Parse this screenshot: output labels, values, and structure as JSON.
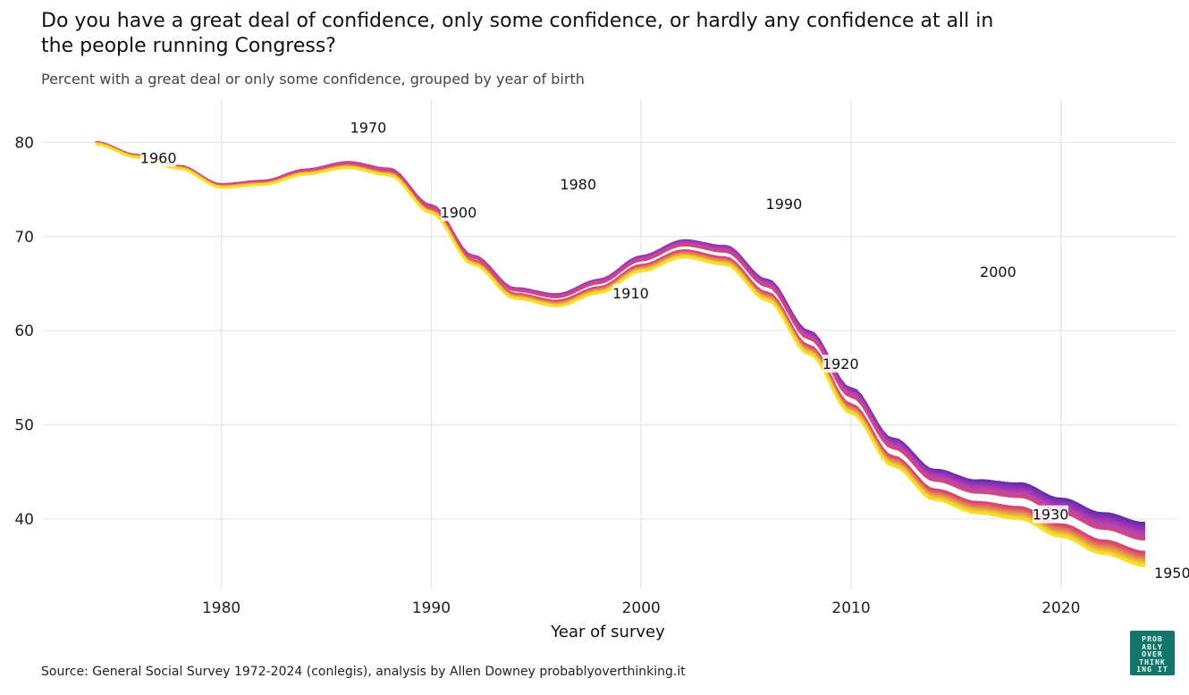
{
  "title": "Do you have a great deal of confidence, only some confidence, or hardly any confidence at all in the people running Congress?",
  "subtitle": "Percent with a great deal or only some confidence, grouped by year of birth",
  "source": "Source: General Social Survey 1972-2024 (conlegis), analysis by Allen Downey probablyoverthinking.it",
  "logo_lines": [
    "PROB",
    "ABLY",
    "OVER",
    "THINK",
    "ING IT"
  ],
  "chart_data": {
    "type": "line",
    "xlabel": "Year of survey",
    "ylabel": "",
    "xlim": [
      1971.5,
      2025.5
    ],
    "ylim": [
      32.5,
      84.5
    ],
    "xticks": [
      1980,
      1990,
      2000,
      2010,
      2020
    ],
    "yticks": [
      40,
      50,
      60,
      70,
      80
    ],
    "grid": true,
    "legend": "none",
    "colors": {
      "1900": "#f5e12a",
      "1925": "#d9486d",
      "1950": "#c048a8",
      "1975": "#9a34b8",
      "2000": "#5a2fa6"
    },
    "cohort_range": [
      1900,
      2000
    ],
    "base_curve": {
      "x": [
        1974,
        1976,
        1978,
        1980,
        1982,
        1984,
        1986,
        1988,
        1990,
        1992,
        1994,
        1996,
        1998,
        2000,
        2002,
        2004,
        2006,
        2008,
        2010,
        2012,
        2014,
        2016,
        2018,
        2020,
        2022,
        2024
      ],
      "y": [
        79.8,
        78.4,
        77.2,
        75.2,
        75.5,
        76.6,
        77.3,
        76.5,
        72.5,
        67.0,
        63.4,
        62.6,
        64.0,
        66.3,
        67.8,
        67.0,
        63.2,
        57.5,
        51.2,
        45.6,
        42.0,
        40.6,
        40.0,
        38.1,
        36.3,
        35.0
      ]
    },
    "cohort_label_positions": [
      {
        "label": "1900",
        "x": 1991.3,
        "y": 72.5
      },
      {
        "label": "1910",
        "x": 1999.5,
        "y": 63.9
      },
      {
        "label": "1920",
        "x": 2009.5,
        "y": 56.4
      },
      {
        "label": "1930",
        "x": 2019.5,
        "y": 40.4
      },
      {
        "label": "1950",
        "x": 2025.3,
        "y": 34.2
      },
      {
        "label": "1960",
        "x": 1977.0,
        "y": 78.3
      },
      {
        "label": "1970",
        "x": 1987.0,
        "y": 81.5
      },
      {
        "label": "1980",
        "x": 1997.0,
        "y": 75.5
      },
      {
        "label": "1990",
        "x": 2006.8,
        "y": 73.4
      },
      {
        "label": "2000",
        "x": 2017.0,
        "y": 66.2
      }
    ]
  }
}
